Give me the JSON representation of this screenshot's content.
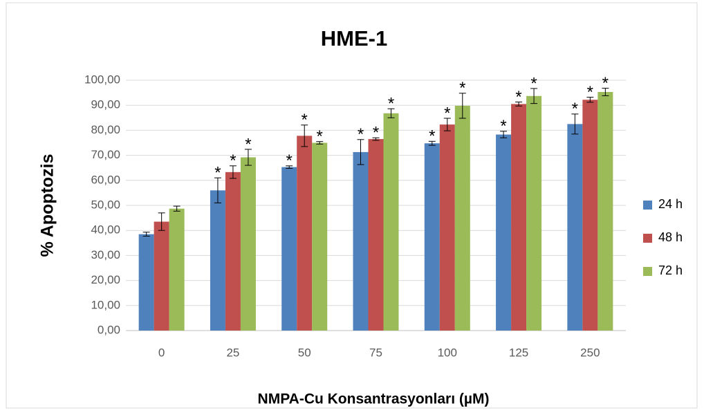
{
  "chart_data": {
    "type": "bar",
    "title": "HME-1",
    "x_label": "NMPA-Cu Konsantrasyonları (µM)",
    "y_label": "% Apoptozis",
    "categories": [
      "0",
      "25",
      "50",
      "75",
      "100",
      "125",
      "250"
    ],
    "series": [
      {
        "name": "24 h",
        "color": "#4f81bd",
        "values": [
          38.5,
          56,
          65.3,
          71.3,
          74.8,
          78.3,
          82.5
        ],
        "errors": [
          0.8,
          5,
          0.5,
          5,
          0.8,
          1.3,
          4
        ],
        "annotations": [
          null,
          "*",
          "*",
          "*",
          "*",
          "*",
          "*"
        ]
      },
      {
        "name": "48 h",
        "color": "#c0504d",
        "values": [
          43.5,
          63.3,
          77.8,
          76.5,
          82.3,
          90.5,
          92.2
        ],
        "errors": [
          3.5,
          2.5,
          4.3,
          0.5,
          2.5,
          0.8,
          1
        ],
        "annotations": [
          null,
          "*",
          "*",
          "*",
          "*",
          "*",
          "*"
        ]
      },
      {
        "name": "72 h",
        "color": "#9bbb59",
        "values": [
          48.7,
          69.2,
          75,
          86.8,
          89.8,
          93.7,
          95.3
        ],
        "errors": [
          1,
          3.2,
          0.5,
          1.8,
          5,
          3,
          1.5
        ],
        "annotations": [
          null,
          "*",
          "*",
          "*",
          "*",
          "*",
          "*"
        ]
      }
    ],
    "ylim": [
      0,
      100
    ],
    "yticks": [
      {
        "value": 0,
        "label": "0,00"
      },
      {
        "value": 10,
        "label": "10,00"
      },
      {
        "value": 20,
        "label": "20,00"
      },
      {
        "value": 30,
        "label": "30,00"
      },
      {
        "value": 40,
        "label": "40,00"
      },
      {
        "value": 50,
        "label": "50,00"
      },
      {
        "value": 60,
        "label": "60,00"
      },
      {
        "value": 70,
        "label": "70,00"
      },
      {
        "value": 80,
        "label": "80,00"
      },
      {
        "value": 90,
        "label": "90,00"
      },
      {
        "value": 100,
        "label": "100,00"
      }
    ],
    "grid": true,
    "legend": "right"
  }
}
